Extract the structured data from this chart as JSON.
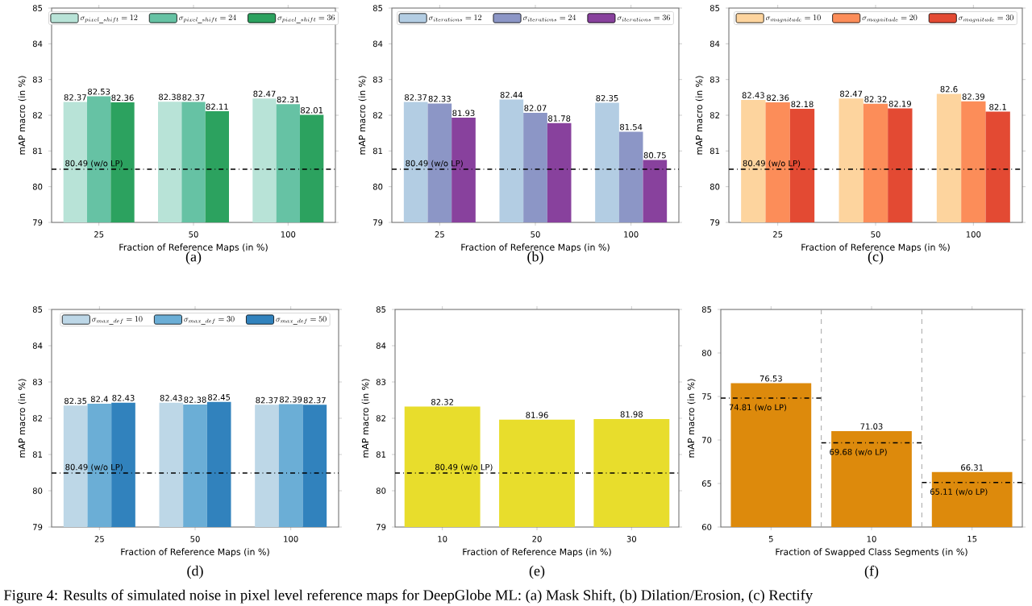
{
  "chart_data": [
    {
      "type": "bar",
      "categories": [
        "25",
        "50",
        "100"
      ],
      "xlabel": "Fraction of Reference Maps (in %)",
      "ylabel": "mAP macro (in %)",
      "ylim": [
        79,
        85
      ],
      "yticks": [
        79,
        80,
        81,
        82,
        83,
        84,
        85
      ],
      "legend": "top",
      "data_labels": true,
      "series": [
        {
          "name": "\\sigma_{pixel\\_shift} = 12",
          "color": "#b8e3d7",
          "values": [
            82.37,
            82.38,
            82.47
          ]
        },
        {
          "name": "\\sigma_{pixel\\_shift} = 24",
          "color": "#66c2a4",
          "values": [
            82.53,
            82.37,
            82.31
          ]
        },
        {
          "name": "\\sigma_{pixel\\_shift} = 36",
          "color": "#2ca25f",
          "values": [
            82.36,
            82.11,
            82.01
          ]
        }
      ],
      "ref_lines": [
        {
          "axis": "y",
          "value": 80.49,
          "label": "80.49 (w/o LP)",
          "color": "#000000",
          "line_style": "dashdot"
        }
      ],
      "annotations": [
        "(a)",
        "Figure 4: Results of simulated noise in pixel level reference maps for DeepGlobe ML: (a) Mask Shift, (b) Dilation/Erosion, (c) Rectify"
      ]
    },
    {
      "type": "bar",
      "categories": [
        "25",
        "50",
        "100"
      ],
      "xlabel": "Fraction of Reference Maps (in %)",
      "ylabel": "mAP macro (in %)",
      "ylim": [
        79,
        85
      ],
      "yticks": [
        79,
        80,
        81,
        82,
        83,
        84,
        85
      ],
      "legend": "top",
      "data_labels": true,
      "series": [
        {
          "name": "\\sigma_{iterations} = 12",
          "color": "#b3cde3",
          "values": [
            82.37,
            82.44,
            82.35
          ]
        },
        {
          "name": "\\sigma_{iterations} = 24",
          "color": "#8c96c6",
          "values": [
            82.33,
            82.07,
            81.54
          ]
        },
        {
          "name": "\\sigma_{iterations} = 36",
          "color": "#88419d",
          "values": [
            81.93,
            81.78,
            80.75
          ]
        }
      ],
      "ref_lines": [
        {
          "axis": "y",
          "value": 80.49,
          "label": "80.49 (w/o LP)",
          "color": "#000000",
          "line_style": "dashdot"
        }
      ],
      "annotations": [
        "(b)"
      ]
    },
    {
      "type": "bar",
      "categories": [
        "25",
        "50",
        "100"
      ],
      "xlabel": "Fraction of Reference Maps (in %)",
      "ylabel": "mAP macro (in %)",
      "ylim": [
        79,
        85
      ],
      "yticks": [
        79,
        80,
        81,
        82,
        83,
        84,
        85
      ],
      "legend": "top",
      "data_labels": true,
      "series": [
        {
          "name": "\\sigma_{magnitude} = 10",
          "color": "#fdd49e",
          "values": [
            82.43,
            82.47,
            82.6
          ]
        },
        {
          "name": "\\sigma_{magnitude} = 20",
          "color": "#fc8d59",
          "values": [
            82.36,
            82.32,
            82.39
          ]
        },
        {
          "name": "\\sigma_{magnitude} = 30",
          "color": "#e34a33",
          "values": [
            82.18,
            82.19,
            82.1
          ]
        }
      ],
      "ref_lines": [
        {
          "axis": "y",
          "value": 80.49,
          "label": "80.49 (w/o LP)",
          "color": "#000000",
          "line_style": "dashdot"
        }
      ],
      "annotations": [
        "(c)"
      ]
    },
    {
      "type": "bar",
      "categories": [
        "25",
        "50",
        "100"
      ],
      "xlabel": "Fraction of Reference Maps (in %)",
      "ylabel": "mAP macro (in %)",
      "ylim": [
        79,
        85
      ],
      "yticks": [
        79,
        80,
        81,
        82,
        83,
        84,
        85
      ],
      "legend": "top",
      "data_labels": true,
      "series": [
        {
          "name": "\\sigma_{max\\_def} = 10",
          "color": "#bdd7e7",
          "values": [
            82.35,
            82.43,
            82.37
          ]
        },
        {
          "name": "\\sigma_{max\\_def} = 30",
          "color": "#6baed6",
          "values": [
            82.4,
            82.38,
            82.39
          ]
        },
        {
          "name": "\\sigma_{max\\_def} = 50",
          "color": "#3182bd",
          "values": [
            82.43,
            82.45,
            82.37
          ]
        }
      ],
      "ref_lines": [
        {
          "axis": "y",
          "value": 80.49,
          "label": "80.49 (w/o LP)",
          "color": "#000000",
          "line_style": "dashdot"
        }
      ],
      "annotations": [
        "(d)"
      ]
    },
    {
      "type": "bar",
      "categories": [
        "10",
        "20",
        "30"
      ],
      "xlabel": "Fraction of Reference Maps (in %)",
      "ylabel": "mAP macro (in %)",
      "ylim": [
        79,
        85
      ],
      "yticks": [
        79,
        80,
        81,
        82,
        83,
        84,
        85
      ],
      "data_labels": true,
      "color": "#e8dd2c",
      "values": [
        82.32,
        81.96,
        81.98
      ],
      "ref_lines": [
        {
          "axis": "y",
          "value": 80.49,
          "label": "80.49 (w/o LP)",
          "color": "#000000",
          "line_style": "dashdot"
        }
      ],
      "annotations": [
        "(e)"
      ]
    },
    {
      "type": "bar",
      "categories": [
        "5",
        "10",
        "15"
      ],
      "xlabel": "Fraction of Swapped Class Segments (in %)",
      "ylabel": "mAP macro (in %)",
      "ylim": [
        60,
        85
      ],
      "yticks": [
        60,
        65,
        70,
        75,
        80,
        85
      ],
      "data_labels": true,
      "color": "#dd8a0c",
      "values": [
        76.53,
        71.03,
        66.31
      ],
      "ref_lines": [
        {
          "axis": "y",
          "value": 74.81,
          "label": "74.81 (w/o LP)",
          "color": "#000000",
          "line_style": "dashdot"
        },
        {
          "axis": "y",
          "value": 69.68,
          "label": "69.68 (w/o LP)",
          "color": "#000000",
          "line_style": "dashdot"
        },
        {
          "axis": "y",
          "value": 65.11,
          "label": "65.11 (w/o LP)",
          "color": "#000000",
          "line_style": "dashdot"
        }
      ],
      "annotations": [
        "(f)"
      ]
    }
  ]
}
